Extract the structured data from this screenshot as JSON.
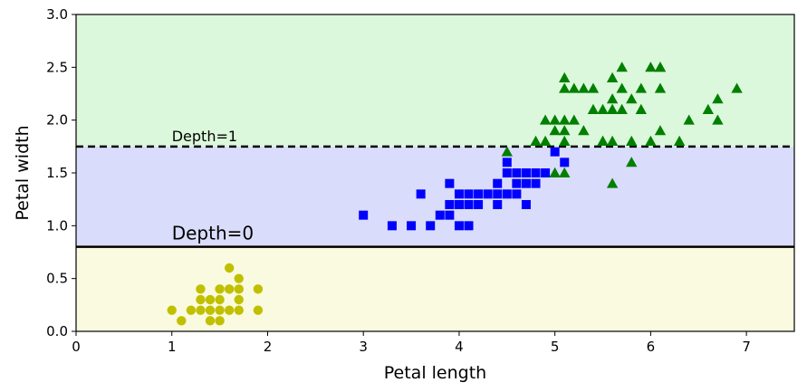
{
  "chart_data": {
    "type": "scatter",
    "xlabel": "Petal length",
    "ylabel": "Petal width",
    "xlim": [
      0,
      7.5
    ],
    "ylim": [
      0,
      3.0
    ],
    "x_ticks": [
      0,
      1,
      2,
      3,
      4,
      5,
      6,
      7
    ],
    "y_ticks": [
      "0.0",
      "0.5",
      "1.0",
      "1.5",
      "2.0",
      "2.5",
      "3.0"
    ],
    "grid": false,
    "regions": [
      {
        "y_from": 0.0,
        "y_to": 0.8,
        "color": "#fafae0"
      },
      {
        "y_from": 0.8,
        "y_to": 1.75,
        "color": "#dadcfb"
      },
      {
        "y_from": 1.75,
        "y_to": 3.0,
        "color": "#dcf8dc"
      }
    ],
    "boundaries": [
      {
        "y": 0.8,
        "style": "solid",
        "label": "Depth=0"
      },
      {
        "y": 1.75,
        "style": "dashed",
        "label": "Depth=1"
      }
    ],
    "series": [
      {
        "marker": "circle",
        "color": "#c0c000",
        "points": [
          [
            1.0,
            0.2
          ],
          [
            1.1,
            0.1
          ],
          [
            1.2,
            0.2
          ],
          [
            1.3,
            0.2
          ],
          [
            1.3,
            0.3
          ],
          [
            1.3,
            0.4
          ],
          [
            1.4,
            0.1
          ],
          [
            1.4,
            0.2
          ],
          [
            1.4,
            0.3
          ],
          [
            1.5,
            0.1
          ],
          [
            1.5,
            0.2
          ],
          [
            1.5,
            0.3
          ],
          [
            1.5,
            0.4
          ],
          [
            1.6,
            0.2
          ],
          [
            1.6,
            0.4
          ],
          [
            1.6,
            0.6
          ],
          [
            1.7,
            0.2
          ],
          [
            1.7,
            0.3
          ],
          [
            1.7,
            0.4
          ],
          [
            1.7,
            0.5
          ],
          [
            1.9,
            0.2
          ],
          [
            1.9,
            0.4
          ]
        ]
      },
      {
        "marker": "square",
        "color": "#0000ff",
        "points": [
          [
            3.0,
            1.1
          ],
          [
            3.3,
            1.0
          ],
          [
            3.5,
            1.0
          ],
          [
            3.6,
            1.3
          ],
          [
            3.7,
            1.0
          ],
          [
            3.8,
            1.1
          ],
          [
            3.9,
            1.1
          ],
          [
            3.9,
            1.2
          ],
          [
            3.9,
            1.4
          ],
          [
            4.0,
            1.0
          ],
          [
            4.0,
            1.2
          ],
          [
            4.0,
            1.3
          ],
          [
            4.1,
            1.0
          ],
          [
            4.1,
            1.3
          ],
          [
            4.2,
            1.3
          ],
          [
            4.3,
            1.3
          ],
          [
            4.4,
            1.2
          ],
          [
            4.4,
            1.3
          ],
          [
            4.4,
            1.4
          ],
          [
            4.5,
            1.3
          ],
          [
            4.5,
            1.5
          ],
          [
            4.6,
            1.3
          ],
          [
            4.6,
            1.4
          ],
          [
            4.6,
            1.5
          ],
          [
            4.7,
            1.2
          ],
          [
            4.7,
            1.4
          ],
          [
            4.7,
            1.5
          ],
          [
            4.8,
            1.4
          ],
          [
            4.9,
            1.5
          ],
          [
            5.0,
            1.7
          ],
          [
            4.2,
            1.2
          ],
          [
            4.5,
            1.6
          ],
          [
            4.8,
            1.5
          ],
          [
            5.1,
            1.6
          ],
          [
            4.1,
            1.2
          ],
          [
            4.0,
            1.2
          ]
        ]
      },
      {
        "marker": "triangle",
        "color": "#008000",
        "points": [
          [
            4.5,
            1.7
          ],
          [
            4.8,
            1.8
          ],
          [
            4.9,
            1.8
          ],
          [
            5.0,
            1.5
          ],
          [
            5.0,
            2.0
          ],
          [
            5.1,
            1.5
          ],
          [
            5.1,
            1.8
          ],
          [
            5.1,
            1.9
          ],
          [
            5.1,
            2.0
          ],
          [
            5.1,
            2.3
          ],
          [
            5.1,
            2.4
          ],
          [
            5.2,
            2.0
          ],
          [
            5.2,
            2.3
          ],
          [
            5.3,
            1.9
          ],
          [
            5.3,
            2.3
          ],
          [
            5.4,
            2.1
          ],
          [
            5.4,
            2.3
          ],
          [
            5.5,
            1.8
          ],
          [
            5.5,
            2.1
          ],
          [
            5.6,
            1.4
          ],
          [
            5.6,
            1.8
          ],
          [
            5.6,
            2.1
          ],
          [
            5.6,
            2.2
          ],
          [
            5.6,
            2.4
          ],
          [
            5.7,
            2.1
          ],
          [
            5.7,
            2.3
          ],
          [
            5.7,
            2.5
          ],
          [
            5.8,
            1.8
          ],
          [
            5.8,
            2.2
          ],
          [
            5.9,
            2.1
          ],
          [
            5.9,
            2.3
          ],
          [
            6.0,
            1.8
          ],
          [
            6.0,
            2.5
          ],
          [
            6.1,
            1.9
          ],
          [
            6.1,
            2.3
          ],
          [
            6.1,
            2.5
          ],
          [
            6.3,
            1.8
          ],
          [
            6.4,
            2.0
          ],
          [
            6.6,
            2.1
          ],
          [
            6.7,
            2.0
          ],
          [
            6.7,
            2.2
          ],
          [
            6.9,
            2.3
          ],
          [
            5.8,
            1.6
          ],
          [
            5.6,
            2.1
          ],
          [
            5.5,
            1.8
          ],
          [
            6.1,
            2.5
          ],
          [
            5.0,
            1.9
          ],
          [
            4.9,
            2.0
          ]
        ]
      }
    ]
  }
}
